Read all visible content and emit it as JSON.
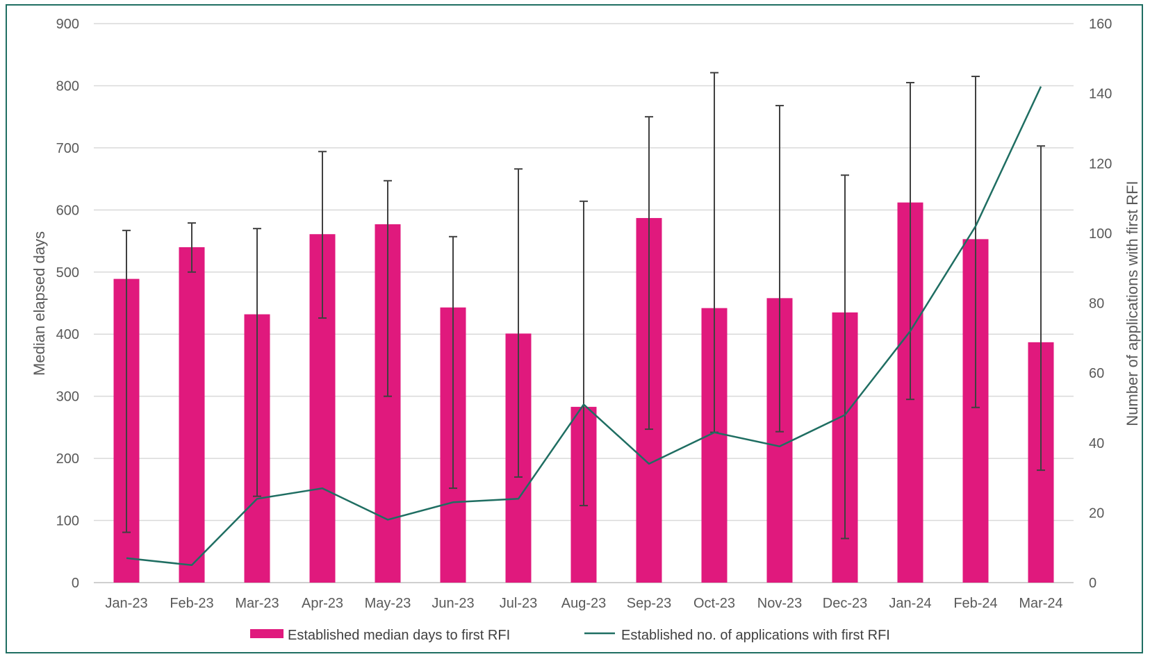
{
  "chart_data": {
    "type": "bar",
    "categories": [
      "Jan-23",
      "Feb-23",
      "Mar-23",
      "Apr-23",
      "May-23",
      "Jun-23",
      "Jul-23",
      "Aug-23",
      "Sep-23",
      "Oct-23",
      "Nov-23",
      "Dec-23",
      "Jan-24",
      "Feb-24",
      "Mar-24"
    ],
    "y_left": {
      "label": "Median elapsed days",
      "range": [
        0,
        900
      ],
      "ticks": [
        0,
        100,
        200,
        300,
        400,
        500,
        600,
        700,
        800,
        900
      ]
    },
    "y_right": {
      "label": "Number  of applications with first RFI",
      "range": [
        0,
        160
      ],
      "ticks": [
        0,
        20,
        40,
        60,
        80,
        100,
        120,
        140,
        160
      ]
    },
    "grid": true,
    "legend_position": "bottom",
    "series": [
      {
        "name": "Established median days to first RFI",
        "type": "bar",
        "axis": "left",
        "color": "#e0197d",
        "values": [
          489,
          540,
          432,
          561,
          577,
          443,
          401,
          283,
          587,
          442,
          458,
          435,
          612,
          553,
          387
        ],
        "error_upper": [
          567,
          579,
          570,
          694,
          647,
          557,
          666,
          614,
          750,
          821,
          768,
          656,
          805,
          815,
          703
        ],
        "error_lower": [
          81,
          500,
          139,
          426,
          300,
          152,
          170,
          124,
          247,
          242,
          243,
          71,
          295,
          282,
          181
        ]
      },
      {
        "name": "Established no. of applications with first RFI",
        "type": "line",
        "axis": "right",
        "color": "#1f6e62",
        "values": [
          7,
          5,
          24,
          27,
          18,
          23,
          24,
          51,
          34,
          43,
          39,
          48,
          72,
          102,
          142
        ]
      }
    ]
  }
}
